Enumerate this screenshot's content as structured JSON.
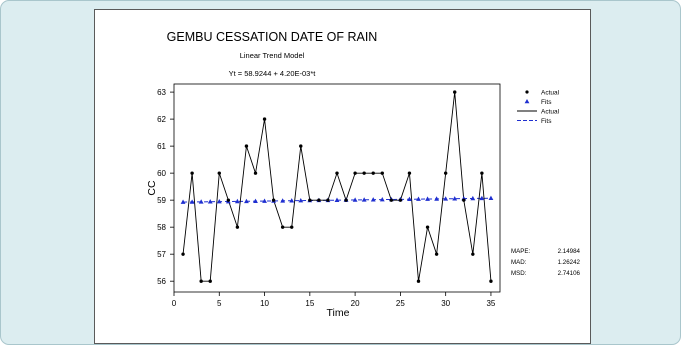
{
  "chart_data": {
    "type": "line",
    "title": "GEMBU CESSATION DATE OF RAIN",
    "subtitle": "Linear Trend Model",
    "equation": "Yt = 58.9244 + 4.20E-03*t",
    "xlabel": "Time",
    "ylabel": "CC",
    "xlim": [
      0,
      36
    ],
    "ylim": [
      55.6,
      63.3
    ],
    "x_ticks": [
      "0",
      "5",
      "10",
      "15",
      "20",
      "25",
      "30",
      "35"
    ],
    "x_tick_values": [
      0,
      5,
      10,
      15,
      20,
      25,
      30,
      35
    ],
    "y_ticks": [
      "56",
      "57",
      "58",
      "59",
      "60",
      "61",
      "62",
      "63"
    ],
    "y_tick_values": [
      56,
      57,
      58,
      59,
      60,
      61,
      62,
      63
    ],
    "grid": false,
    "legend_position": "top-right",
    "legend": [
      {
        "label": "Actual",
        "symbol": "dot"
      },
      {
        "label": "Fits",
        "symbol": "triangle"
      },
      {
        "label": "Actual",
        "symbol": "solid-line"
      },
      {
        "label": "Fits",
        "symbol": "dashed-line"
      }
    ],
    "series": [
      {
        "name": "Actual",
        "color": "#000000",
        "x": [
          1,
          2,
          3,
          4,
          5,
          6,
          7,
          8,
          9,
          10,
          11,
          12,
          13,
          14,
          15,
          16,
          17,
          18,
          19,
          20,
          21,
          22,
          23,
          24,
          25,
          26,
          27,
          28,
          29,
          30,
          31,
          32,
          33,
          34,
          35
        ],
        "values": [
          57,
          60,
          56,
          56,
          60,
          59,
          58,
          61,
          60,
          62,
          59,
          58,
          58,
          61,
          59,
          59,
          59,
          60,
          59,
          60,
          60,
          60,
          60,
          59,
          59,
          60,
          56,
          58,
          57,
          60,
          63,
          59,
          57,
          60,
          56
        ]
      },
      {
        "name": "Fits",
        "color": "#1f2fd0",
        "x": [
          1,
          2,
          3,
          4,
          5,
          6,
          7,
          8,
          9,
          10,
          11,
          12,
          13,
          14,
          15,
          16,
          17,
          18,
          19,
          20,
          21,
          22,
          23,
          24,
          25,
          26,
          27,
          28,
          29,
          30,
          31,
          32,
          33,
          34,
          35
        ],
        "values": [
          58.9286,
          58.9328,
          58.937,
          58.9412,
          58.9454,
          58.9496,
          58.9538,
          58.958,
          58.9622,
          58.9664,
          58.9706,
          58.9748,
          58.979,
          58.9832,
          58.9874,
          58.9916,
          58.9958,
          59.0,
          59.0042,
          59.0084,
          59.0126,
          59.0168,
          59.021,
          59.0252,
          59.0294,
          59.0336,
          59.0378,
          59.042,
          59.0462,
          59.0504,
          59.0546,
          59.0588,
          59.063,
          59.0672,
          59.0714
        ]
      }
    ],
    "accuracy_measures": [
      {
        "label": "MAPE:",
        "value": "2.14984"
      },
      {
        "label": "MAD:",
        "value": "1.26242"
      },
      {
        "label": "MSD:",
        "value": "2.74106"
      }
    ]
  }
}
